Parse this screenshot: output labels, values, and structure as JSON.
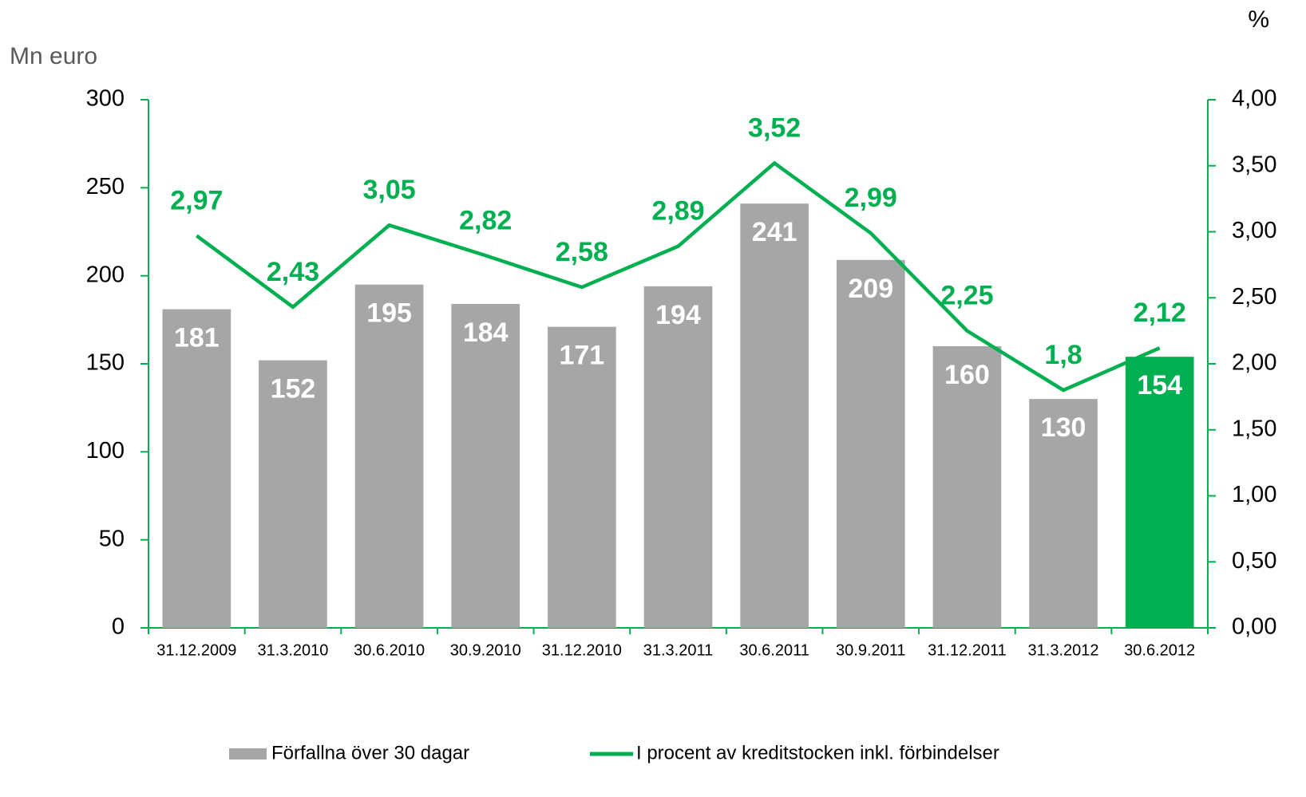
{
  "chart_data": {
    "type": "bar",
    "y_label": "Mn euro",
    "y2_label": "%",
    "categories": [
      "31.12.2009",
      "31.3.2010",
      "30.6.2010",
      "30.9.2010",
      "31.12.2010",
      "31.3.2011",
      "30.6.2011",
      "30.9.2011",
      "31.12.2011",
      "31.3.2012",
      "30.6.2012"
    ],
    "series": [
      {
        "name": "Förfallna över 30 dagar",
        "type": "bar",
        "color": "#a6a6a6",
        "colors": [
          "#a6a6a6",
          "#a6a6a6",
          "#a6a6a6",
          "#a6a6a6",
          "#a6a6a6",
          "#a6a6a6",
          "#a6a6a6",
          "#a6a6a6",
          "#a6a6a6",
          "#a6a6a6",
          "#00b050"
        ],
        "values": [
          181,
          152,
          195,
          184,
          171,
          194,
          241,
          209,
          160,
          130,
          154
        ]
      },
      {
        "name": "I procent av kreditstocken inkl. förbindelser",
        "type": "line",
        "axis": "y2",
        "color": "#00b050",
        "values": [
          2.97,
          2.43,
          3.05,
          2.82,
          2.58,
          2.89,
          3.52,
          2.99,
          2.25,
          1.8,
          2.12
        ],
        "value_labels": [
          "2,97",
          "2,43",
          "3,05",
          "2,82",
          "2,58",
          "2,89",
          "3,52",
          "2,99",
          "2,25",
          "1,8",
          "2,12"
        ]
      }
    ],
    "ylim": [
      0,
      300
    ],
    "yticks": [
      0,
      50,
      100,
      150,
      200,
      250,
      300
    ],
    "y2lim": [
      0,
      4
    ],
    "y2ticks": [
      {
        "value": 0,
        "label": "0,00"
      },
      {
        "value": 0.5,
        "label": "0,50"
      },
      {
        "value": 1,
        "label": "1,00"
      },
      {
        "value": 1.5,
        "label": "1,50"
      },
      {
        "value": 2,
        "label": "2,00"
      },
      {
        "value": 2.5,
        "label": "2,50"
      },
      {
        "value": 3,
        "label": "3,00"
      },
      {
        "value": 3.5,
        "label": "3,50"
      },
      {
        "value": 4,
        "label": "4,00"
      }
    ],
    "axis_color": "#00b050",
    "legend": "bottom"
  }
}
